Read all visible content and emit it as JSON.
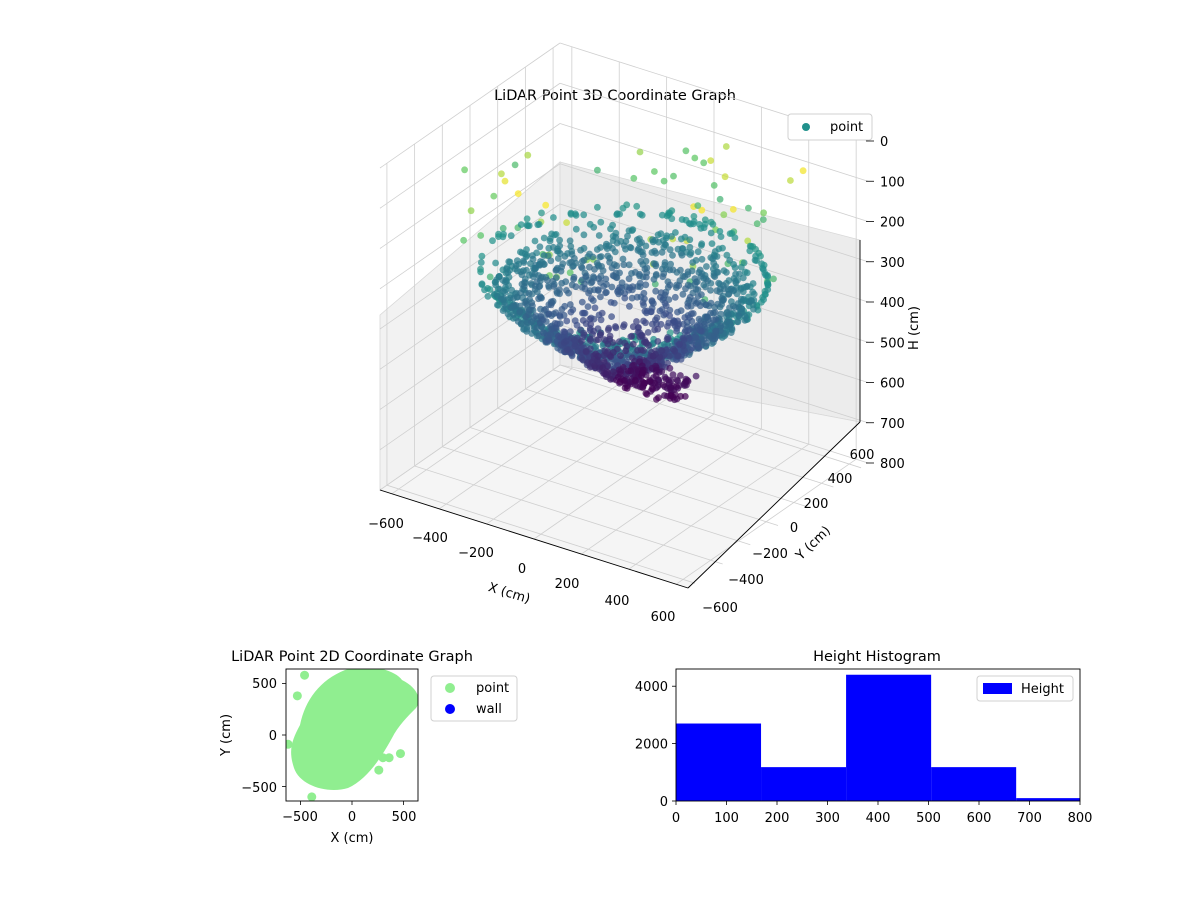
{
  "chart_data": [
    {
      "type": "scatter",
      "subtype": "3d",
      "title": "LiDAR Point 3D Coordinate Graph",
      "xlabel": "X (cm)",
      "ylabel": "Y (cm)",
      "zlabel": "H (cm)",
      "xlim": [
        -650,
        650
      ],
      "ylim": [
        -650,
        650
      ],
      "zlim": [
        0,
        800
      ],
      "z_inverted": true,
      "xticks": [
        "−600",
        "−400",
        "−200",
        "0",
        "200",
        "400",
        "600"
      ],
      "yticks": [
        "−600",
        "−400",
        "−200",
        "0",
        "200",
        "400",
        "600"
      ],
      "zticks": [
        "0",
        "100",
        "200",
        "300",
        "400",
        "500",
        "600",
        "700",
        "800"
      ],
      "colormap": "viridis",
      "legend": {
        "entries": [
          "point"
        ],
        "placement": "upper right"
      },
      "grid": true,
      "description_of_points": "dense bowl of points at heights 300-600 cm, radius up to ~500 cm, plus sparse points near 0-200 cm"
    },
    {
      "type": "scatter",
      "title": "LiDAR Point 2D Coordinate Graph",
      "xlabel": "X (cm)",
      "ylabel": "Y (cm)",
      "xlim": [
        -640,
        640
      ],
      "ylim": [
        -640,
        640
      ],
      "xticks": [
        "−500",
        "0",
        "500"
      ],
      "yticks": [
        "−500",
        "0",
        "500"
      ],
      "series": [
        {
          "name": "point",
          "color": "#90ee90"
        },
        {
          "name": "wall",
          "color": "#0000ff"
        }
      ],
      "legend_placement": "outside right",
      "outliers": [
        [
          -460,
          580
        ],
        [
          -530,
          380
        ],
        [
          -620,
          -90
        ],
        [
          -390,
          -600
        ],
        [
          260,
          -340
        ],
        [
          300,
          -220
        ],
        [
          360,
          -220
        ],
        [
          470,
          -180
        ]
      ]
    },
    {
      "type": "bar",
      "subtype": "histogram",
      "title": "Height Histogram",
      "bin_edges": [
        0,
        168.4,
        336.8,
        505.2,
        673.6,
        842
      ],
      "values": [
        2700,
        1180,
        4400,
        1180,
        100
      ],
      "xlim": [
        0,
        800
      ],
      "ylim": [
        0,
        4600
      ],
      "xticks": [
        "0",
        "100",
        "200",
        "300",
        "400",
        "500",
        "600",
        "700",
        "800"
      ],
      "yticks": [
        "0",
        "2000",
        "4000"
      ],
      "legend": {
        "entries": [
          "Height"
        ],
        "placement": "upper right"
      },
      "color": "#0000ff"
    }
  ]
}
